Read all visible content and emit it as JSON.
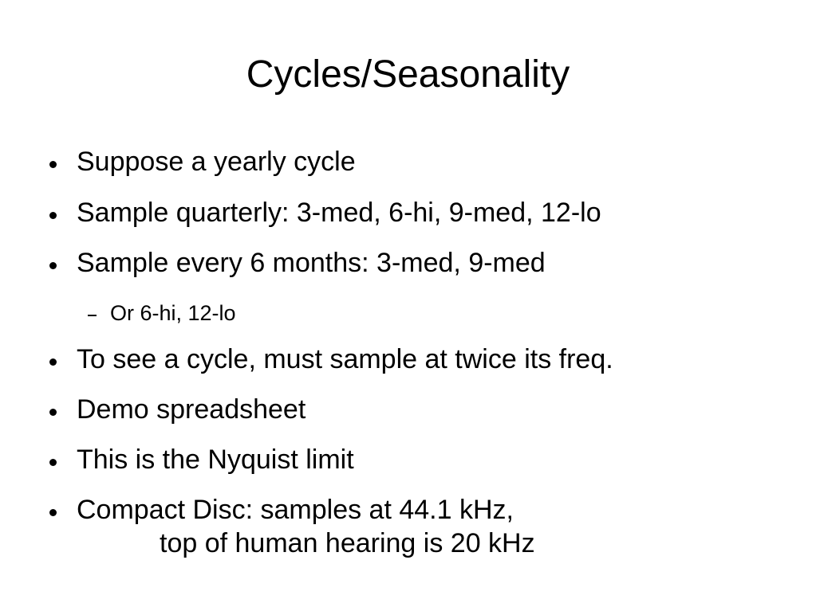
{
  "slide": {
    "title": "Cycles/Seasonality",
    "bullets": [
      {
        "level": 1,
        "text": "Suppose a yearly cycle"
      },
      {
        "level": 1,
        "text": "Sample quarterly: 3-med, 6-hi, 9-med, 12-lo"
      },
      {
        "level": 1,
        "text": "Sample every 6 months: 3-med, 9-med"
      },
      {
        "level": 2,
        "text": "Or 6-hi, 12-lo"
      },
      {
        "level": 1,
        "text": "To see a cycle, must sample at twice its freq."
      },
      {
        "level": 1,
        "text": "Demo spreadsheet"
      },
      {
        "level": 1,
        "text": "This is the Nyquist limit"
      },
      {
        "level": 1,
        "text": "Compact Disc: samples at 44.1 kHz,",
        "continuation": "top of human hearing is 20 kHz"
      }
    ]
  }
}
